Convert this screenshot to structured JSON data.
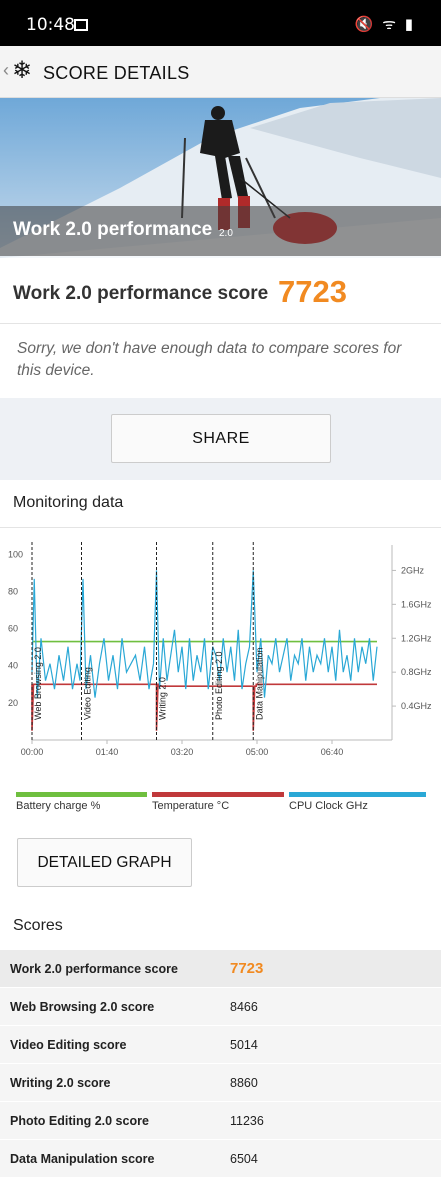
{
  "status_bar": {
    "time": "10:48",
    "right_icons": "🔇 ᯤ ▮"
  },
  "app_bar": {
    "back": "‹",
    "icon": "❄",
    "title": "SCORE DETAILS"
  },
  "hero": {
    "title": "Work 2.0 performance",
    "version": "2.0"
  },
  "score": {
    "label": "Work 2.0 performance score",
    "value": "7723",
    "note": "Sorry, we don't have enough data to compare scores for this device."
  },
  "share_label": "SHARE",
  "monitoring": {
    "title": "Monitoring data"
  },
  "chart_data": {
    "type": "line",
    "title": "",
    "x_ticks": [
      "00:00",
      "01:40",
      "03:20",
      "05:00",
      "06:40"
    ],
    "y_left_ticks": [
      20,
      40,
      60,
      80,
      100
    ],
    "y_right_ticks": [
      "0.4GHz",
      "0.8GHz",
      "1.2GHz",
      "1.6GHz",
      "2GHz"
    ],
    "ylim_left": [
      0,
      105
    ],
    "ylim_right": [
      0,
      2.3
    ],
    "xlim_seconds": [
      0,
      480
    ],
    "markers": [
      {
        "label": "Web Browsing 2.0",
        "t": 0
      },
      {
        "label": "Video Editing",
        "t": 66
      },
      {
        "label": "Writing 2.0",
        "t": 166
      },
      {
        "label": "Photo Editing 2.0",
        "t": 241
      },
      {
        "label": "Data Manipulation",
        "t": 295
      }
    ],
    "series": [
      {
        "name": "Battery charge %",
        "color": "#6fbf3f",
        "x": [
          0,
          460
        ],
        "y": [
          53,
          53
        ]
      },
      {
        "name": "Temperature °C",
        "color": "#c0393b",
        "x": [
          0,
          0,
          2,
          4,
          4,
          166,
          166,
          168,
          170,
          170,
          295,
          295,
          297,
          299,
          299,
          460
        ],
        "y": [
          30,
          5,
          30,
          30,
          30,
          30,
          5,
          30,
          30,
          29,
          29,
          5,
          29,
          29,
          30,
          30
        ]
      },
      {
        "name": "CPU Clock GHz",
        "color": "#2aa8d6",
        "x": [
          0,
          3,
          7,
          12,
          18,
          24,
          30,
          36,
          42,
          48,
          54,
          60,
          64,
          68,
          72,
          78,
          84,
          90,
          96,
          102,
          108,
          114,
          120,
          126,
          132,
          138,
          144,
          150,
          156,
          162,
          166,
          170,
          175,
          180,
          185,
          190,
          195,
          200,
          205,
          210,
          215,
          220,
          225,
          230,
          235,
          241,
          245,
          250,
          255,
          260,
          265,
          270,
          275,
          280,
          285,
          290,
          295,
          300,
          305,
          310,
          315,
          320,
          325,
          330,
          335,
          340,
          345,
          350,
          355,
          360,
          365,
          370,
          375,
          380,
          385,
          390,
          395,
          400,
          405,
          410,
          415,
          420,
          425,
          430,
          435,
          440,
          445,
          450,
          455,
          460
        ],
        "y": [
          0.8,
          1.9,
          0.5,
          1.2,
          0.7,
          0.9,
          0.6,
          1.0,
          0.7,
          1.1,
          0.6,
          0.9,
          0.7,
          1.9,
          0.6,
          1.0,
          0.5,
          0.9,
          1.2,
          0.7,
          1.0,
          0.6,
          1.2,
          0.8,
          0.9,
          1.0,
          0.7,
          1.1,
          0.6,
          0.9,
          2.0,
          0.6,
          1.2,
          0.7,
          1.0,
          1.3,
          0.8,
          1.1,
          0.6,
          1.2,
          0.7,
          1.0,
          0.8,
          1.2,
          0.6,
          1.1,
          1.0,
          0.7,
          1.2,
          0.8,
          1.1,
          0.7,
          1.3,
          0.6,
          0.9,
          1.1,
          2.0,
          0.8,
          1.2,
          0.5,
          1.0,
          0.9,
          1.2,
          0.8,
          1.0,
          1.2,
          0.7,
          1.0,
          0.9,
          1.2,
          0.7,
          1.1,
          0.8,
          1.0,
          0.9,
          1.2,
          0.8,
          1.1,
          0.7,
          1.3,
          0.8,
          1.0,
          0.7,
          1.2,
          0.8,
          1.1,
          0.9,
          1.2,
          0.7,
          1.1
        ]
      }
    ]
  },
  "detail_button_label": "DETAILED GRAPH",
  "scores_section": {
    "title": "Scores",
    "rows": [
      {
        "name": "Work 2.0 performance score",
        "value": "7723"
      },
      {
        "name": "Web Browsing 2.0 score",
        "value": "8466"
      },
      {
        "name": "Video Editing score",
        "value": "5014"
      },
      {
        "name": "Writing 2.0 score",
        "value": "8860"
      },
      {
        "name": "Photo Editing 2.0 score",
        "value": "11236"
      },
      {
        "name": "Data Manipulation score",
        "value": "6504"
      }
    ]
  }
}
